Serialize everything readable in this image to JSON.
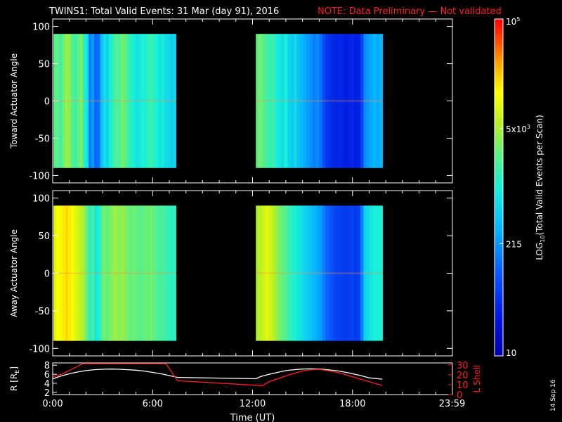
{
  "header": {
    "title": "TWINS1: Total Valid Events: 31 Mar (day  91), 2016",
    "note": "NOTE: Data Preliminary — Not validated",
    "note_color": "#ff2020"
  },
  "footer": {
    "side_date": "14 Sep 16"
  },
  "chart_data": [
    {
      "type": "heatmap",
      "name": "toward",
      "ylabel": "Toward Actuator Angle",
      "ylim": [
        -110,
        110
      ],
      "yticks": [
        "100",
        "50",
        "0",
        "-50",
        "-100"
      ],
      "ytick_values": [
        100,
        50,
        0,
        -50,
        -100
      ],
      "x_range_hours": [
        0,
        24
      ],
      "data_extent_y": [
        -90,
        90
      ],
      "data_segments_hours": [
        [
          0.05,
          7.4
        ],
        [
          12.2,
          19.8
        ]
      ],
      "column_values_segment1": [
        0.58,
        0.6,
        0.55,
        0.62,
        0.66,
        0.64,
        0.58,
        0.55,
        0.6,
        0.63,
        0.52,
        0.48,
        0.3,
        0.34,
        0.26,
        0.28,
        0.4,
        0.46,
        0.44,
        0.5,
        0.54,
        0.58,
        0.57,
        0.62,
        0.6,
        0.56,
        0.52,
        0.5,
        0.47,
        0.48,
        0.51,
        0.5,
        0.53,
        0.55,
        0.52,
        0.5,
        0.47,
        0.49,
        0.46,
        0.45,
        0.43,
        0.44
      ],
      "column_values_segment2": [
        0.6,
        0.62,
        0.58,
        0.56,
        0.54,
        0.55,
        0.5,
        0.48,
        0.46,
        0.5,
        0.44,
        0.42,
        0.45,
        0.4,
        0.38,
        0.36,
        0.34,
        0.32,
        0.3,
        0.32,
        0.28,
        0.22,
        0.18,
        0.16,
        0.15,
        0.14,
        0.15,
        0.14,
        0.13,
        0.14,
        0.15,
        0.13,
        0.14,
        0.2,
        0.32,
        0.34,
        0.36,
        0.38,
        0.36,
        0.38
      ]
    },
    {
      "type": "heatmap",
      "name": "away",
      "ylabel": "Away Actuator Angle",
      "ylim": [
        -110,
        110
      ],
      "yticks": [
        "100",
        "50",
        "0",
        "-50",
        "-100"
      ],
      "ytick_values": [
        100,
        50,
        0,
        -50,
        -100
      ],
      "x_range_hours": [
        0,
        24
      ],
      "data_extent_y": [
        -90,
        90
      ],
      "data_segments_hours": [
        [
          0.05,
          7.4
        ],
        [
          12.2,
          19.8
        ]
      ],
      "column_values_segment1": [
        0.74,
        0.78,
        0.76,
        0.8,
        0.82,
        0.8,
        0.77,
        0.74,
        0.72,
        0.7,
        0.66,
        0.6,
        0.52,
        0.56,
        0.48,
        0.5,
        0.58,
        0.62,
        0.6,
        0.63,
        0.65,
        0.66,
        0.64,
        0.66,
        0.64,
        0.62,
        0.6,
        0.62,
        0.6,
        0.58,
        0.6,
        0.61,
        0.6,
        0.62,
        0.6,
        0.58,
        0.56,
        0.57,
        0.55,
        0.54,
        0.52,
        0.53
      ],
      "column_values_segment2": [
        0.68,
        0.7,
        0.72,
        0.74,
        0.72,
        0.7,
        0.66,
        0.62,
        0.6,
        0.58,
        0.54,
        0.52,
        0.5,
        0.48,
        0.46,
        0.44,
        0.42,
        0.4,
        0.38,
        0.36,
        0.34,
        0.3,
        0.26,
        0.24,
        0.22,
        0.2,
        0.2,
        0.19,
        0.18,
        0.19,
        0.2,
        0.18,
        0.2,
        0.3,
        0.44,
        0.46,
        0.48,
        0.5,
        0.5,
        0.5
      ]
    },
    {
      "type": "line",
      "name": "orbit",
      "ylabel_left": "R [R",
      "ylabel_left_sub": "E",
      "ylabel_left_end": "]",
      "ylabel_right": "L Shell",
      "yticks_left": [
        "8",
        "6",
        "4",
        "2"
      ],
      "ytick_left_values": [
        8,
        6,
        4,
        2
      ],
      "ylim_left": [
        1.5,
        8.5
      ],
      "yticks_right": [
        "30",
        "20",
        "10",
        "0"
      ],
      "ytick_right_values": [
        30,
        20,
        10,
        0
      ],
      "ylim_right": [
        0,
        32
      ],
      "xticks": [
        "0:00",
        "6:00",
        "12:00",
        "18:00",
        "23:59"
      ],
      "xtick_values": [
        0,
        6,
        12,
        18,
        23.98
      ],
      "xlabel": "Time (UT)",
      "series": [
        {
          "name": "R",
          "color": "#ffffff",
          "x": [
            0,
            0.5,
            1,
            1.5,
            2,
            2.5,
            3,
            3.5,
            4,
            4.5,
            5,
            5.5,
            6,
            6.5,
            7,
            7.5,
            12.2,
            12.5,
            13,
            13.5,
            14,
            14.5,
            15,
            15.5,
            16,
            16.5,
            17,
            17.5,
            18,
            18.5,
            19,
            19.8
          ],
          "y": [
            5.0,
            5.6,
            6.1,
            6.5,
            6.8,
            7.0,
            7.1,
            7.15,
            7.1,
            7.0,
            6.9,
            6.7,
            6.4,
            6.1,
            5.7,
            5.3,
            5.0,
            5.5,
            6.0,
            6.4,
            6.8,
            7.0,
            7.15,
            7.2,
            7.15,
            7.0,
            6.8,
            6.5,
            6.1,
            5.7,
            5.2,
            4.9
          ]
        },
        {
          "name": "L Shell",
          "color": "#ff2020",
          "x": [
            0,
            0.6,
            1.2,
            1.8,
            6.8,
            7.5,
            12.6,
            13.0,
            13.6,
            14.2,
            14.8,
            15.4,
            16.0,
            16.6,
            17.2,
            17.8,
            18.4,
            19.0,
            19.8
          ],
          "y": [
            18.0,
            21.0,
            26.0,
            31.5,
            31.5,
            14.0,
            9.0,
            13.0,
            16.5,
            20.0,
            23.0,
            25.0,
            25.5,
            24.0,
            22.0,
            19.0,
            16.0,
            13.0,
            9.0
          ]
        }
      ]
    },
    {
      "type": "heatmap",
      "name": "colorbar",
      "ylabel": "LOG",
      "ylabel_sub": "10",
      "ylabel_end": "(Total Valid  Events per Scan)",
      "tick_main": [
        "10",
        "215",
        "5x10",
        "10"
      ],
      "tick_sup": [
        "",
        "",
        "3",
        "5"
      ],
      "tick_values": [
        10,
        215,
        5000,
        100000
      ]
    }
  ]
}
